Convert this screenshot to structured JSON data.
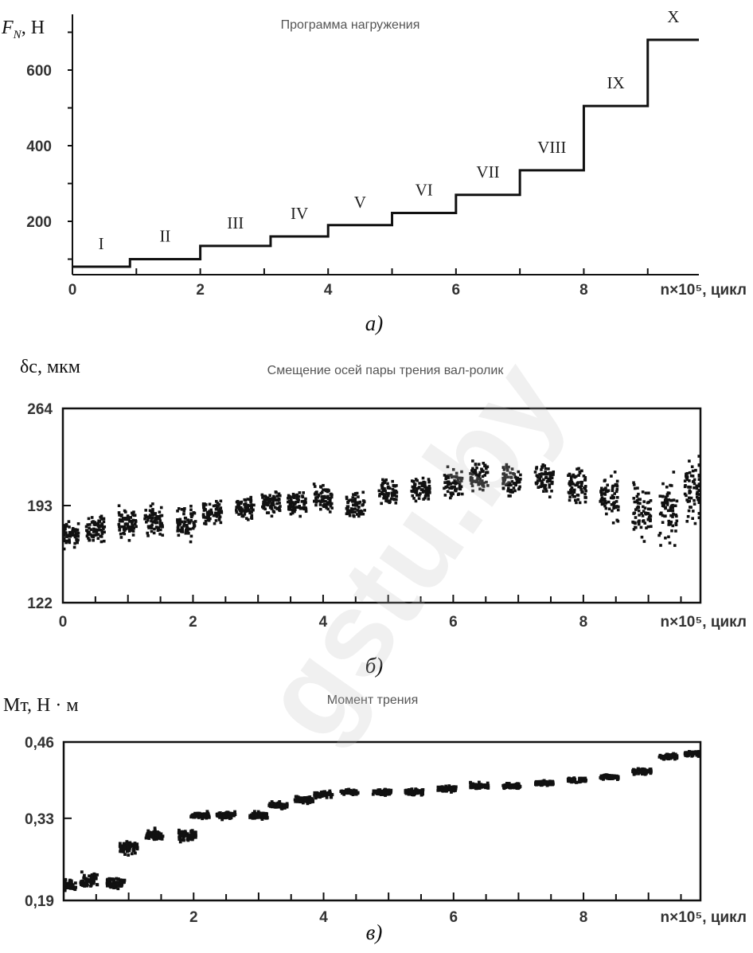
{
  "watermark": "gstu.by",
  "chart_data": [
    {
      "type": "line",
      "panel_label": "а)",
      "title": "Программа нагружения",
      "ylabel": "F_N, H",
      "xlabel": "n×10⁵, цикл",
      "x_tick_labels": [
        "0",
        "2",
        "4",
        "6",
        "8"
      ],
      "y_tick_labels": [
        "200",
        "400",
        "600"
      ],
      "xlim": [
        0,
        9.8
      ],
      "ylim": [
        30,
        720
      ],
      "steps": [
        {
          "label": "I",
          "x0": 0,
          "x1": 0.9,
          "y": 80
        },
        {
          "label": "II",
          "x0": 0.9,
          "x1": 2.0,
          "y": 100
        },
        {
          "label": "III",
          "x0": 2.0,
          "x1": 3.1,
          "y": 135
        },
        {
          "label": "IV",
          "x0": 3.1,
          "x1": 4.0,
          "y": 160
        },
        {
          "label": "V",
          "x0": 4.0,
          "x1": 5.0,
          "y": 190
        },
        {
          "label": "VI",
          "x0": 5.0,
          "x1": 6.0,
          "y": 222
        },
        {
          "label": "VII",
          "x0": 6.0,
          "x1": 7.0,
          "y": 270
        },
        {
          "label": "VIII",
          "x0": 7.0,
          "x1": 8.0,
          "y": 335
        },
        {
          "label": "IX",
          "x0": 8.0,
          "x1": 9.0,
          "y": 505
        },
        {
          "label": "X",
          "x0": 9.0,
          "x1": 9.8,
          "y": 680
        }
      ]
    },
    {
      "type": "scatter",
      "panel_label": "б)",
      "title": "Смещение осей пары трения вал-ролик",
      "ylabel": "δс, мкм",
      "xlabel": "n×10⁵, цикл",
      "x_tick_labels": [
        "0",
        "2",
        "4",
        "6",
        "8"
      ],
      "y_tick_labels": [
        "122",
        "193",
        "264"
      ],
      "xlim": [
        0,
        9.8
      ],
      "ylim": [
        122,
        264
      ],
      "clusters": [
        {
          "x": 0.1,
          "center": 172,
          "spread": 14
        },
        {
          "x": 0.5,
          "center": 176,
          "spread": 14
        },
        {
          "x": 1.0,
          "center": 180,
          "spread": 14
        },
        {
          "x": 1.4,
          "center": 182,
          "spread": 14
        },
        {
          "x": 1.9,
          "center": 180,
          "spread": 16
        },
        {
          "x": 2.3,
          "center": 188,
          "spread": 12
        },
        {
          "x": 2.8,
          "center": 191,
          "spread": 12
        },
        {
          "x": 3.2,
          "center": 195,
          "spread": 12
        },
        {
          "x": 3.6,
          "center": 193,
          "spread": 13
        },
        {
          "x": 4.0,
          "center": 197,
          "spread": 14
        },
        {
          "x": 4.5,
          "center": 193,
          "spread": 14
        },
        {
          "x": 5.0,
          "center": 203,
          "spread": 13
        },
        {
          "x": 5.5,
          "center": 205,
          "spread": 12
        },
        {
          "x": 6.0,
          "center": 210,
          "spread": 14
        },
        {
          "x": 6.4,
          "center": 214,
          "spread": 14
        },
        {
          "x": 6.9,
          "center": 212,
          "spread": 18
        },
        {
          "x": 7.4,
          "center": 212,
          "spread": 18
        },
        {
          "x": 7.9,
          "center": 207,
          "spread": 20
        },
        {
          "x": 8.4,
          "center": 200,
          "spread": 22
        },
        {
          "x": 8.9,
          "center": 190,
          "spread": 30
        },
        {
          "x": 9.3,
          "center": 188,
          "spread": 32
        },
        {
          "x": 9.7,
          "center": 205,
          "spread": 32
        }
      ]
    },
    {
      "type": "scatter",
      "panel_label": "в)",
      "title": "Момент трения",
      "ylabel": "Мт, Н · м",
      "xlabel": "n×10⁵, цикл",
      "x_tick_labels": [
        "2",
        "4",
        "6",
        "8"
      ],
      "y_tick_labels": [
        "0,19",
        "0,33",
        "0,46"
      ],
      "xlim": [
        0,
        9.8
      ],
      "ylim": [
        0.19,
        0.46
      ],
      "clusters": [
        {
          "x": 0.05,
          "center": 0.215,
          "spread": 0.014
        },
        {
          "x": 0.4,
          "center": 0.225,
          "spread": 0.016
        },
        {
          "x": 0.8,
          "center": 0.22,
          "spread": 0.014
        },
        {
          "x": 1.0,
          "center": 0.28,
          "spread": 0.014
        },
        {
          "x": 1.4,
          "center": 0.3,
          "spread": 0.014
        },
        {
          "x": 1.9,
          "center": 0.3,
          "spread": 0.014
        },
        {
          "x": 2.1,
          "center": 0.335,
          "spread": 0.008
        },
        {
          "x": 2.5,
          "center": 0.335,
          "spread": 0.008
        },
        {
          "x": 3.0,
          "center": 0.335,
          "spread": 0.008
        },
        {
          "x": 3.3,
          "center": 0.352,
          "spread": 0.008
        },
        {
          "x": 3.7,
          "center": 0.362,
          "spread": 0.008
        },
        {
          "x": 4.0,
          "center": 0.37,
          "spread": 0.008
        },
        {
          "x": 4.4,
          "center": 0.375,
          "spread": 0.007
        },
        {
          "x": 4.9,
          "center": 0.375,
          "spread": 0.008
        },
        {
          "x": 5.4,
          "center": 0.375,
          "spread": 0.008
        },
        {
          "x": 5.9,
          "center": 0.38,
          "spread": 0.007
        },
        {
          "x": 6.4,
          "center": 0.385,
          "spread": 0.007
        },
        {
          "x": 6.9,
          "center": 0.385,
          "spread": 0.007
        },
        {
          "x": 7.4,
          "center": 0.39,
          "spread": 0.006
        },
        {
          "x": 7.9,
          "center": 0.395,
          "spread": 0.006
        },
        {
          "x": 8.4,
          "center": 0.4,
          "spread": 0.006
        },
        {
          "x": 8.9,
          "center": 0.41,
          "spread": 0.006
        },
        {
          "x": 9.3,
          "center": 0.435,
          "spread": 0.007
        },
        {
          "x": 9.7,
          "center": 0.44,
          "spread": 0.006
        }
      ]
    }
  ]
}
